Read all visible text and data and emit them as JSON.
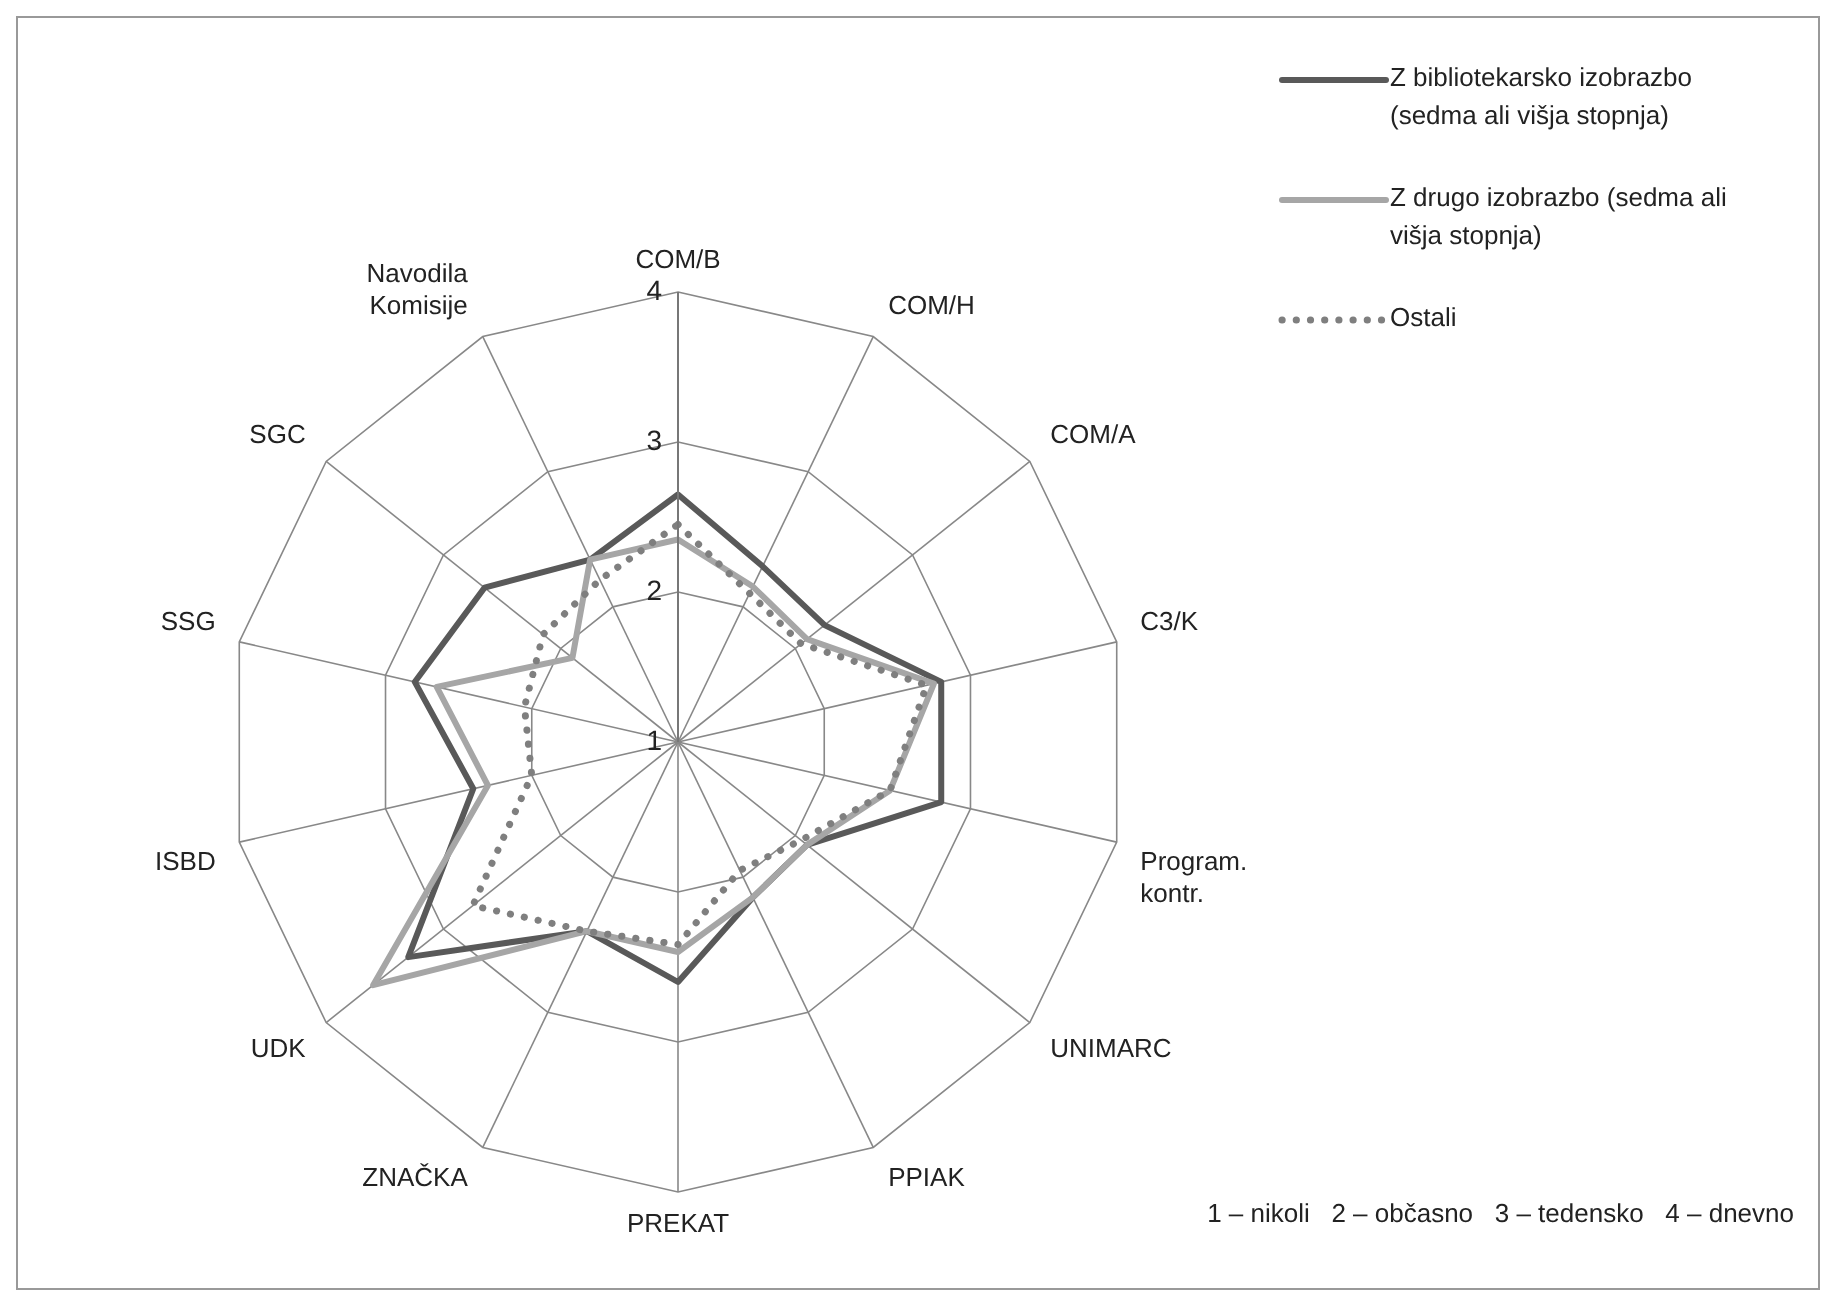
{
  "chart_data": {
    "type": "radar",
    "categories": [
      "COM/B",
      "COM/H",
      "COM/A",
      "C3/K",
      "Program. kontr.",
      "UNIMARC",
      "PPIAK",
      "PREKAT",
      "ZNAČKA",
      "UDK",
      "ISBD",
      "SSG",
      "SGC",
      "Navodila Komisije"
    ],
    "series": [
      {
        "name": "Z bibliotekarsko izobrazbo (sedma ali višja stopnja)",
        "color": "#595959",
        "line_style": "solid",
        "values": [
          2.65,
          2.3,
          2.25,
          2.8,
          2.8,
          2.1,
          2.15,
          2.6,
          2.4,
          3.3,
          2.4,
          2.8,
          2.65,
          2.35
        ]
      },
      {
        "name": "Z drugo izobrazbo (sedma ali višja stopnja)",
        "color": "#a6a6a6",
        "line_style": "solid",
        "values": [
          2.35,
          2.15,
          2.1,
          2.75,
          2.45,
          2.1,
          2.15,
          2.4,
          2.4,
          3.6,
          2.3,
          2.65,
          1.9,
          2.35
        ]
      },
      {
        "name": "Ostali",
        "color": "#7f7f7f",
        "line_style": "dotted",
        "values": [
          2.45,
          2.1,
          2.05,
          2.7,
          2.45,
          2.05,
          1.95,
          2.35,
          2.4,
          2.75,
          2.0,
          2.05,
          2.15,
          2.2
        ]
      }
    ],
    "ylim": [
      1,
      4
    ],
    "yticks": [
      1,
      2,
      3,
      4
    ],
    "grid": true,
    "legend": "top right",
    "marker": "none",
    "annotations": [
      "1 – nikoli   2 – občasno   3 – tedensko   4 – dnevno"
    ]
  }
}
